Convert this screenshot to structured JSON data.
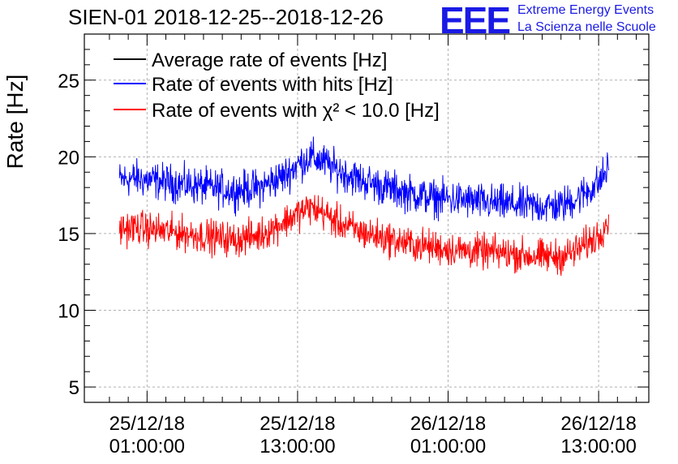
{
  "chart_data": {
    "type": "line",
    "title": "SIEN-01 2018-12-25--2018-12-26",
    "ylabel": "Rate [Hz]",
    "xlabel": "",
    "x_unit": "hours since 2018-12-25 00:00:00",
    "xlim": [
      -4,
      41
    ],
    "ylim": [
      4,
      28
    ],
    "grid": true,
    "legend_position": "top-left",
    "x_ticks": [
      {
        "value": 1,
        "line1": "25/12/18",
        "line2": "01:00:00"
      },
      {
        "value": 13,
        "line1": "25/12/18",
        "line2": "13:00:00"
      },
      {
        "value": 25,
        "line1": "26/12/18",
        "line2": "01:00:00"
      },
      {
        "value": 37,
        "line1": "26/12/18",
        "line2": "13:00:00"
      }
    ],
    "y_ticks": [
      5,
      10,
      15,
      20,
      25
    ],
    "series": [
      {
        "name": "Average rate of events [Hz]",
        "legend_html_parts": [
          "Average rate of events [Hz]"
        ],
        "color": "#000000",
        "x": [],
        "values": []
      },
      {
        "name": "Rate of events with hits [Hz]",
        "color": "#0000ff",
        "x_start": -1.2,
        "x_end": 37.8,
        "noise_amplitude": 1.3,
        "x": [
          -1.2,
          0,
          2,
          4,
          6,
          8,
          10,
          12,
          13,
          14,
          15,
          16,
          18,
          20,
          22,
          24,
          26,
          28,
          30,
          32,
          34,
          35,
          36,
          37,
          37.8
        ],
        "values": [
          18.5,
          18.6,
          18.4,
          18.2,
          18.0,
          17.8,
          18.0,
          18.8,
          19.5,
          20.0,
          19.7,
          19.2,
          18.5,
          18.0,
          17.6,
          17.3,
          17.2,
          17.0,
          16.9,
          16.8,
          16.8,
          17.2,
          17.7,
          18.3,
          19.3
        ]
      },
      {
        "name": "Rate of events with χ² < 10.0 [Hz]",
        "color": "#ff0000",
        "x_start": -1.2,
        "x_end": 37.8,
        "noise_amplitude": 1.2,
        "x": [
          -1.2,
          0,
          2,
          4,
          6,
          8,
          10,
          12,
          13,
          14,
          15,
          16,
          18,
          20,
          22,
          24,
          26,
          28,
          30,
          32,
          34,
          35,
          36,
          37,
          37.8
        ],
        "values": [
          15.3,
          15.4,
          15.2,
          15.0,
          14.8,
          14.6,
          14.9,
          15.8,
          16.3,
          16.7,
          16.4,
          15.8,
          15.1,
          14.7,
          14.3,
          14.1,
          13.9,
          13.8,
          13.7,
          13.5,
          13.5,
          13.8,
          14.3,
          14.9,
          16.0
        ]
      }
    ],
    "legend": [
      {
        "color": "#000000",
        "text": "Average rate of events [Hz]"
      },
      {
        "color": "#0000ff",
        "text": "Rate of events with hits [Hz]"
      },
      {
        "color": "#ff0000",
        "text": "Rate of events with χ² < 10.0 [Hz]"
      }
    ]
  },
  "header": {
    "logo": "EEE",
    "brand_line1": "Extreme Energy Events",
    "brand_line2": "La Scienza nelle Scuole"
  }
}
